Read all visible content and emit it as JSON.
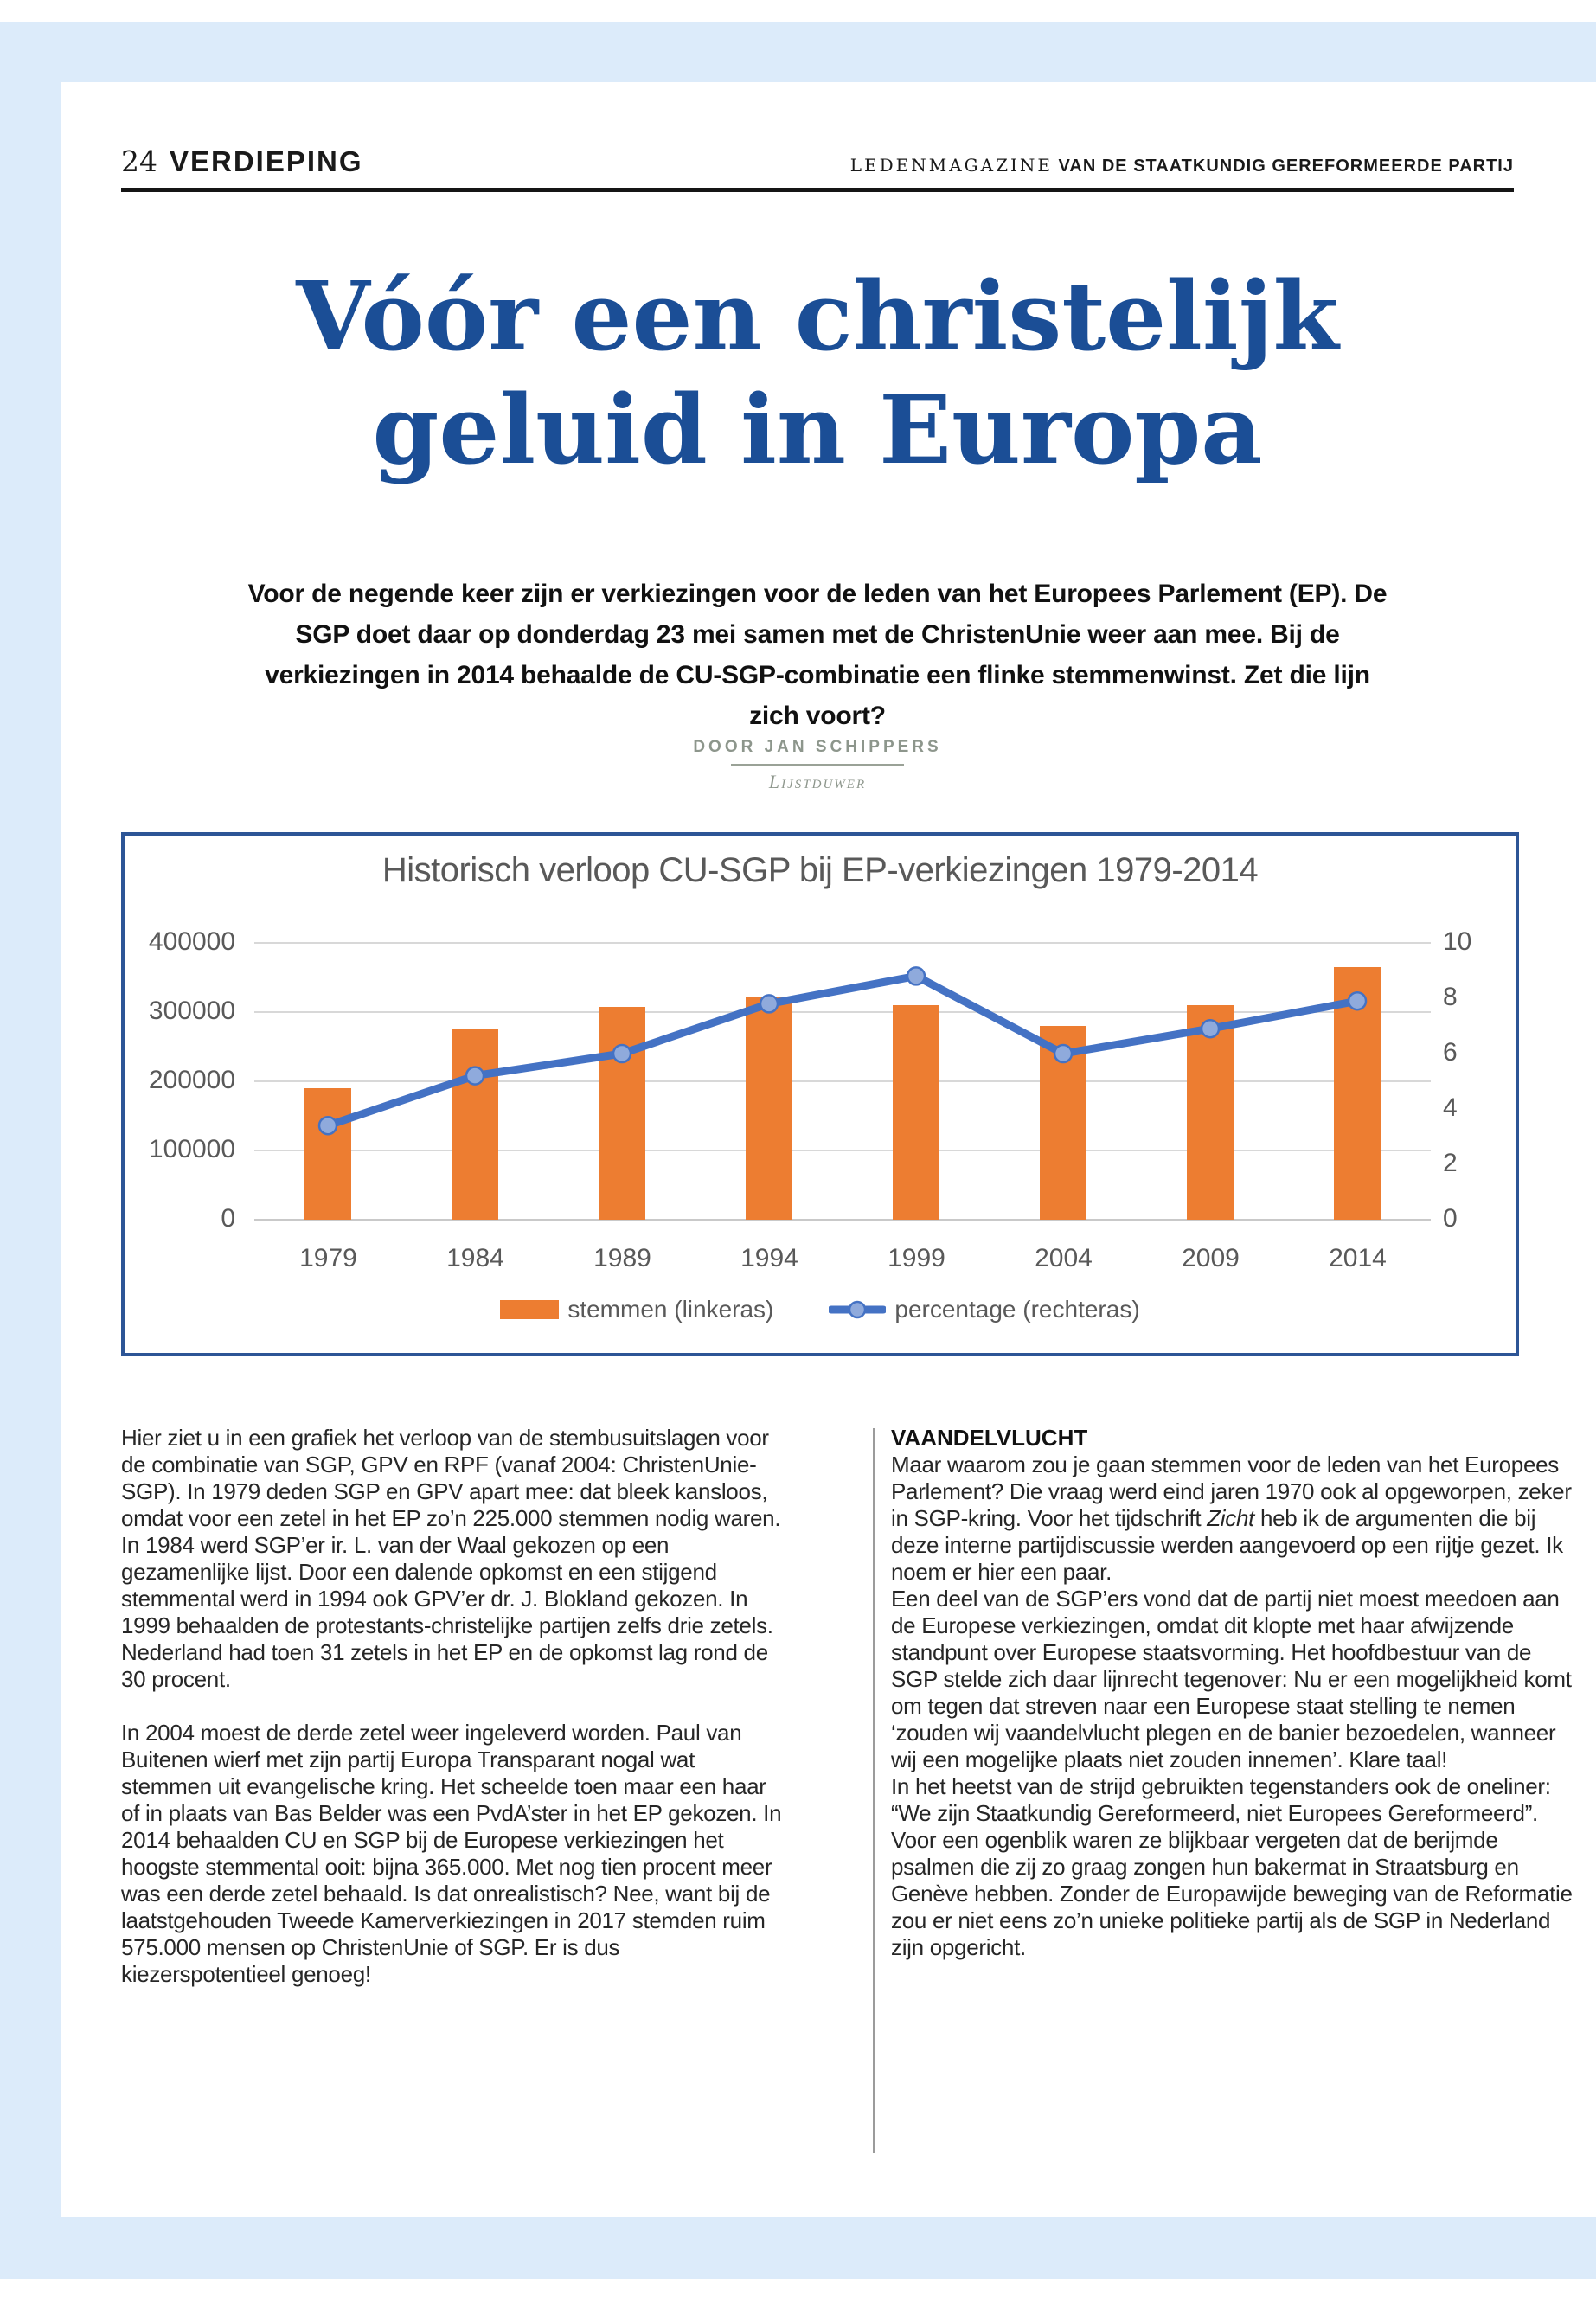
{
  "header": {
    "page_number": "24",
    "section": "VERDIEPING",
    "magazine_prefix": "LEDENMAGAZINE",
    "magazine_rest": " VAN DE STAATKUNDIG GEREFORMEERDE PARTIJ"
  },
  "title": {
    "line1": "Vóór een christelijk",
    "line2": "geluid in Europa"
  },
  "intro": "Voor de negende keer zijn er verkiezingen voor de leden van het Europees Parlement (EP). De SGP doet daar op donderdag 23 mei samen met de ChristenUnie weer aan mee. Bij de verkiezingen in 2014 behaalde de CU-SGP-combinatie een flinke stemmenwinst. Zet die lijn zich voort?",
  "byline": {
    "author": "DOOR JAN SCHIPPERS",
    "role": "Lijstduwer"
  },
  "chart_data": {
    "type": "bar+line",
    "title": "Historisch verloop CU-SGP bij EP-verkiezingen 1979-2014",
    "categories": [
      "1979",
      "1984",
      "1989",
      "1994",
      "1999",
      "2004",
      "2009",
      "2014"
    ],
    "series": [
      {
        "name": "stemmen (linkeras)",
        "type": "bar",
        "axis": "left",
        "color": "#ED7D31",
        "values": [
          190000,
          275000,
          307000,
          322000,
          310000,
          280000,
          310000,
          365000
        ]
      },
      {
        "name": "percentage (rechteras)",
        "type": "line",
        "axis": "right",
        "color": "#4472C4",
        "values": [
          3.4,
          5.2,
          6.0,
          7.8,
          8.8,
          6.0,
          6.9,
          7.9
        ]
      }
    ],
    "left_axis": {
      "min": 0,
      "max": 400000,
      "ticks": [
        0,
        100000,
        200000,
        300000,
        400000
      ],
      "tick_labels": [
        "0",
        "100000",
        "200000",
        "300000",
        "400000"
      ]
    },
    "right_axis": {
      "min": 0,
      "max": 10,
      "ticks": [
        0,
        2,
        4,
        6,
        8,
        10
      ],
      "tick_labels": [
        "0",
        "2",
        "4",
        "6",
        "8",
        "10"
      ]
    },
    "grid": true,
    "legend_position": "bottom"
  },
  "article": {
    "left_paragraphs": [
      [
        {
          "text": "Hier ziet u in een grafiek het verloop van de stembusuitslagen voor de combinatie van SGP, GPV en RPF (vanaf 2004: ChristenUnie-SGP). In 1979 deden SGP en GPV apart mee: dat bleek kansloos, omdat voor een zetel in het EP zo’n 225.000 stemmen nodig waren. In 1984 werd SGP’er ir. L. van der Waal gekozen op een gezamenlijke lijst. Door een dalende opkomst en een stijgend stemmental werd in 1994 ook GPV’er dr. J. Blokland gekozen. In 1999 behaalden de protestants-christelijke partijen zelfs drie zetels. Nederland had toen 31 zetels in het EP en de opkomst lag rond de 30 procent."
        }
      ],
      [
        {
          "text": "In 2004 moest de derde zetel weer ingeleverd worden. Paul van Buitenen wierf met zijn partij Europa Transparant nogal wat stemmen uit evangelische kring. Het scheelde toen maar een haar of in plaats van Bas Belder was een PvdA’ster in het EP gekozen. In 2014 behaalden CU en SGP bij de Europese verkiezingen het hoogste stemmental ooit: bijna 365.000. Met nog tien procent meer was een derde zetel behaald. Is dat onrealistisch? Nee, want bij de laatstgehouden Tweede Kamerverkiezingen in 2017 stemden ruim 575.000 mensen op ChristenUnie of SGP. Er is dus kiezerspotentieel genoeg!"
        }
      ]
    ],
    "right_heading": "VAANDELVLUCHT",
    "right_paragraphs": [
      [
        {
          "text": "Maar waarom zou je gaan stemmen voor de leden van het Europees Parlement? Die vraag werd eind jaren 1970 ook al opgeworpen, zeker in SGP-kring. Voor het tijdschrift "
        },
        {
          "text": "Zicht",
          "italic": true
        },
        {
          "text": " heb ik de argumenten die bij deze interne partijdiscussie werden aangevoerd op een rijtje gezet. Ik noem er hier een paar."
        }
      ],
      [
        {
          "text": "Een deel van de SGP’ers vond dat de partij niet moest meedoen aan de Europese verkiezingen, omdat dit klopte met haar afwijzende standpunt over Europese staatsvorming. Het hoofdbestuur van de SGP stelde zich daar lijnrecht tegenover: Nu er een mogelijkheid komt om tegen dat streven naar een Europese staat stelling te nemen ‘zouden wij vaandelvlucht plegen en de banier bezoedelen, wanneer wij een mogelijke plaats niet zouden innemen’. Klare taal!"
        }
      ],
      [
        {
          "text": "In het heetst van de strijd gebruikten tegenstanders ook de oneliner: “We zijn Staatkundig Gereformeerd, niet Europees Gereformeerd”. Voor een ogenblik waren ze blijkbaar vergeten dat de berijmde psalmen die zij zo graag zongen hun bakermat in Straatsburg en Genève hebben. Zonder de Europawijde beweging van de Reformatie zou er niet eens zo’n unieke politieke partij als de SGP in Nederland zijn opgericht."
        }
      ]
    ]
  },
  "colors": {
    "frame_blue": "#dcebfa",
    "title_blue": "#1b4e96",
    "chart_border_blue": "#2d5596",
    "bar_orange": "#ED7D31",
    "line_blue": "#4472C4",
    "marker_fill": "#8faadc",
    "axis_gray": "#595959",
    "byline_gray": "#8d968c"
  }
}
